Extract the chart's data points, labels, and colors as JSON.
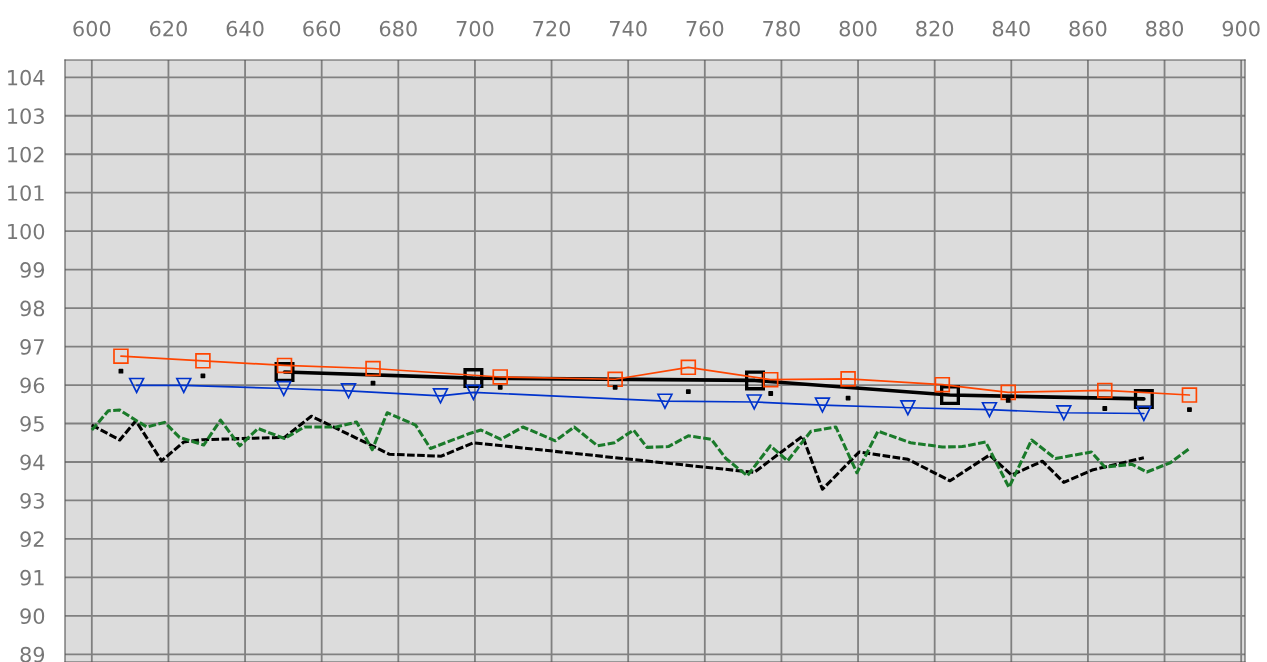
{
  "chart_data": {
    "type": "line",
    "xlim": [
      593,
      901
    ],
    "ylim": [
      88.8,
      104.45
    ],
    "xticks": [
      600,
      620,
      640,
      660,
      680,
      700,
      720,
      740,
      760,
      780,
      800,
      820,
      840,
      860,
      880,
      900
    ],
    "yticks": [
      89,
      90,
      91,
      92,
      93,
      94,
      95,
      96,
      97,
      98,
      99,
      100,
      101,
      102,
      103,
      104
    ],
    "grid": true,
    "legend": false,
    "series": [
      {
        "color": "#ff4500",
        "marker": "square",
        "line_style": "solid",
        "x": [
          607.6,
          629.0,
          650.3,
          673.4,
          706.6,
          736.6,
          755.7,
          777.2,
          797.4,
          822.0,
          839.2,
          864.4,
          886.5
        ],
        "values": [
          96.75,
          96.63,
          96.51,
          96.43,
          96.21,
          96.15,
          96.46,
          96.14,
          96.16,
          96.01,
          95.81,
          95.86,
          95.74
        ]
      },
      {
        "type": "scatter",
        "color": "#000000",
        "marker": "square",
        "x": [
          607.6,
          629.0,
          673.4,
          706.6,
          736.6,
          755.7,
          777.2,
          797.4,
          839.2,
          864.4,
          886.5
        ],
        "values": [
          96.36,
          96.24,
          96.05,
          95.94,
          95.94,
          95.83,
          95.78,
          95.66,
          95.6,
          95.39,
          95.36
        ]
      },
      {
        "color": "#0033cc",
        "marker": "triangle",
        "line_style": "solid",
        "x": [
          611.7,
          624.0,
          650.1,
          667.0,
          691.0,
          699.6,
          749.6,
          772.9,
          790.7,
          813.0,
          834.3,
          853.7,
          874.6
        ],
        "values": [
          95.99,
          95.99,
          95.91,
          95.85,
          95.72,
          95.81,
          95.58,
          95.56,
          95.48,
          95.41,
          95.36,
          95.28,
          95.26
        ]
      },
      {
        "color": "#1a7a2a",
        "marker": "none",
        "line_style": "dashed",
        "x": [
          600.0,
          604.3,
          607.3,
          611.7,
          614.4,
          619.0,
          622.9,
          629.2,
          633.6,
          638.6,
          643.4,
          650.3,
          655.5,
          663.8,
          669.1,
          673.2,
          677.1,
          684.5,
          688.4,
          698.6,
          701.6,
          706.8,
          712.5,
          721.0,
          725.9,
          732.0,
          736.4,
          741.4,
          744.9,
          750.5,
          755.7,
          761.7,
          765.5,
          771.1,
          777.1,
          781.6,
          787.7,
          794.2,
          799.7,
          805.2,
          813.7,
          822.0,
          827.2,
          833.3,
          839.4,
          845.3,
          851.5,
          860.9,
          864.4,
          871.5,
          875.4,
          881.5,
          886.5
        ],
        "values": [
          94.83,
          95.33,
          95.35,
          95.07,
          94.91,
          95.03,
          94.64,
          94.44,
          95.09,
          94.42,
          94.87,
          94.61,
          94.91,
          94.91,
          95.04,
          94.32,
          95.28,
          94.96,
          94.35,
          94.74,
          94.83,
          94.59,
          94.91,
          94.55,
          94.91,
          94.42,
          94.5,
          94.83,
          94.38,
          94.4,
          94.68,
          94.59,
          94.09,
          93.64,
          94.42,
          94.03,
          94.8,
          94.91,
          93.72,
          94.8,
          94.5,
          94.39,
          94.4,
          94.52,
          93.34,
          94.57,
          94.09,
          94.26,
          93.87,
          93.94,
          93.74,
          93.98,
          94.35
        ]
      },
      {
        "color": "#000000",
        "marker": "none",
        "line_style": "dashed",
        "x": [
          600,
          607.3,
          611.5,
          618.2,
          624.0,
          629.0,
          650.3,
          657.3,
          677.7,
          691.2,
          699.6,
          772.9,
          785.5,
          790.7,
          800.3,
          813.0,
          824.0,
          834.3,
          840.1,
          848.1,
          853.7,
          861.1,
          874.6
        ],
        "values": [
          94.96,
          94.57,
          95.07,
          94.03,
          94.52,
          94.58,
          94.64,
          95.19,
          94.2,
          94.15,
          94.5,
          93.73,
          94.67,
          93.29,
          94.26,
          94.07,
          93.51,
          94.18,
          93.66,
          94.02,
          93.47,
          93.79,
          94.11
        ]
      },
      {
        "color": "#000000",
        "marker": "square",
        "line_style": "solid",
        "x": [
          650.3,
          699.6,
          773.1,
          824.0,
          874.6
        ],
        "values": [
          96.34,
          96.18,
          96.12,
          95.74,
          95.64
        ]
      }
    ]
  }
}
